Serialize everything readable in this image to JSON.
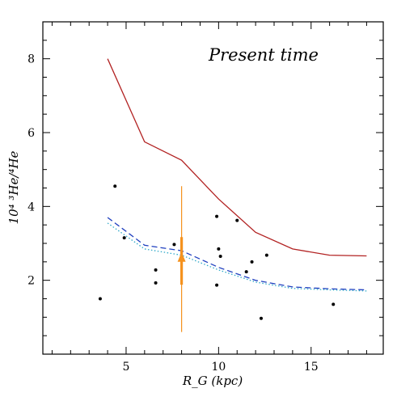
{
  "chart_data": {
    "type": "line",
    "annotation": "Present time",
    "xlabel": "R_G (kpc)",
    "ylabel": "10⁴ ³He/⁴He",
    "xlim": [
      0.5,
      18.9
    ],
    "ylim": [
      0,
      9
    ],
    "x_ticks": [
      5,
      10,
      15
    ],
    "y_ticks": [
      2,
      4,
      6,
      8
    ],
    "grid": false,
    "series": [
      {
        "style": "solid",
        "color": "#b22222",
        "x": [
          4,
          6,
          8,
          10,
          12,
          14,
          16,
          18
        ],
        "y": [
          8.0,
          5.75,
          5.25,
          4.2,
          3.3,
          2.85,
          2.68,
          2.66
        ]
      },
      {
        "style": "dashed",
        "color": "#1f3fbf",
        "x": [
          4,
          6,
          8,
          10,
          12,
          14,
          16,
          18
        ],
        "y": [
          3.7,
          2.95,
          2.8,
          2.35,
          2.0,
          1.82,
          1.77,
          1.74
        ]
      },
      {
        "style": "dotted",
        "color": "#2fa9c9",
        "x": [
          4,
          6,
          8,
          10,
          12,
          14,
          16,
          18
        ],
        "y": [
          3.55,
          2.85,
          2.68,
          2.28,
          1.95,
          1.78,
          1.74,
          1.71
        ]
      }
    ],
    "points": [
      {
        "x": 3.6,
        "y": 1.5
      },
      {
        "x": 4.4,
        "y": 4.55
      },
      {
        "x": 4.9,
        "y": 3.15
      },
      {
        "x": 6.6,
        "y": 2.28
      },
      {
        "x": 6.6,
        "y": 1.93
      },
      {
        "x": 7.6,
        "y": 2.97
      },
      {
        "x": 9.9,
        "y": 3.73
      },
      {
        "x": 10.0,
        "y": 2.85
      },
      {
        "x": 10.1,
        "y": 2.65
      },
      {
        "x": 9.9,
        "y": 1.87
      },
      {
        "x": 11.0,
        "y": 3.62
      },
      {
        "x": 11.5,
        "y": 2.23
      },
      {
        "x": 11.8,
        "y": 2.5
      },
      {
        "x": 12.3,
        "y": 0.97
      },
      {
        "x": 12.6,
        "y": 2.68
      },
      {
        "x": 16.2,
        "y": 1.35
      }
    ],
    "solar_marker": {
      "color": "#f5921e",
      "x": 8,
      "y_low": 0.6,
      "y_high": 4.55,
      "y_thick_low": 1.88,
      "y_thick_high": 3.17,
      "arrow_y": 2.72
    }
  }
}
